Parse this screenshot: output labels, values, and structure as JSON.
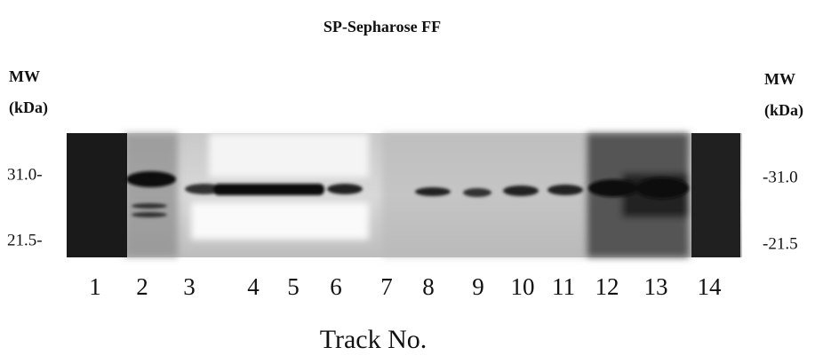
{
  "title": "SP-Sepharose FF",
  "left_axis": {
    "label_lines": [
      "MW",
      "(kDa)"
    ],
    "markers": [
      "31.0-",
      "21.5-"
    ]
  },
  "right_axis": {
    "label_lines": [
      "MW",
      "(kDa)"
    ],
    "markers": [
      "-31.0",
      "-21.5"
    ]
  },
  "lanes": [
    "1",
    "2",
    "3",
    "4",
    "5",
    "6",
    "7",
    "8",
    "9",
    "10",
    "11",
    "12",
    "13",
    "14"
  ],
  "x_label": "Track No."
}
